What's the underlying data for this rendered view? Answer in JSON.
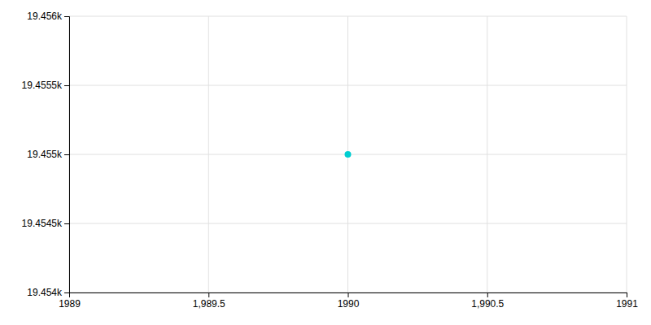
{
  "chart_data": {
    "type": "scatter",
    "x": [
      1990
    ],
    "values": [
      19455
    ],
    "color": "#00CED1",
    "xlim": [
      1989,
      1991
    ],
    "ylim": [
      19454,
      19456
    ],
    "xticks": [
      1989,
      {
        "value": 1989.5,
        "label": "1,989.5"
      },
      1990,
      {
        "value": 1990.5,
        "label": "1,990.5"
      },
      1991
    ],
    "yticks": [
      {
        "value": 19454,
        "label": "19.454k"
      },
      {
        "value": 19454.5,
        "label": "19.4545k"
      },
      {
        "value": 19455,
        "label": "19.455k"
      },
      {
        "value": 19455.5,
        "label": "19.4555k"
      },
      {
        "value": 19456,
        "label": "19.456k"
      }
    ],
    "grid": true
  }
}
